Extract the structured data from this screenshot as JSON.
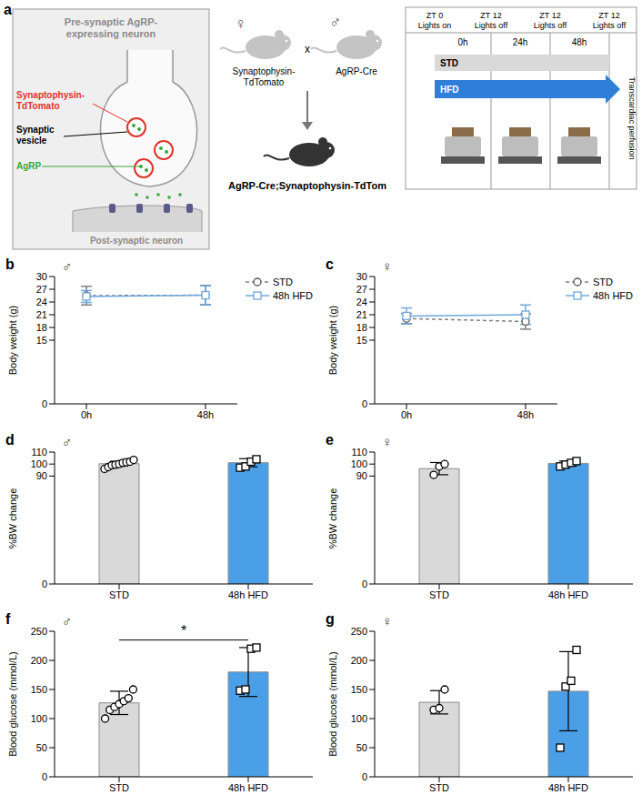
{
  "diagram": {
    "panel": "a",
    "synapse": {
      "presynaptic": "Pre-synaptic AgRP-expressing neuron",
      "reporter": "Synaptophysin-TdTomato",
      "vesicle": "Synaptic vesicle",
      "peptide": "AgRP",
      "postsynaptic": "Post-synaptic neuron"
    },
    "cross": {
      "female": {
        "symbol": "♀",
        "strain": "Synaptophysin-TdTomato"
      },
      "sign": "x",
      "male": {
        "symbol": "♂",
        "strain": "AgRP-Cre"
      },
      "offspring": "AgRP-Cre;Synaptophysin-TdTom"
    },
    "timeline": {
      "header": [
        {
          "zt": "ZT 0",
          "light": "Lights on"
        },
        {
          "zt": "ZT 12",
          "light": "Lights off"
        },
        {
          "zt": "ZT 12",
          "light": "Lights off"
        },
        {
          "zt": "ZT 12",
          "light": "Lights off"
        }
      ],
      "times": [
        "0h",
        "24h",
        "48h"
      ],
      "diets": [
        "STD",
        "HFD"
      ],
      "endpoint": "Transcardiac perfusion"
    }
  },
  "chart_data": [
    {
      "panel": "b",
      "type": "line",
      "subtitle": "♂",
      "categories": [
        "0h",
        "48h"
      ],
      "y_label": "Body weight (g)",
      "ylim": [
        0,
        30
      ],
      "yticks": [
        0,
        15,
        18,
        21,
        24,
        27,
        30
      ],
      "legend": "right",
      "series": [
        {
          "name": "STD",
          "color": "#808080",
          "line_style": "dashed",
          "marker": "circle",
          "values": [
            25.5,
            25.6
          ],
          "errors": [
            2.2,
            2.3
          ]
        },
        {
          "name": "48h HFD",
          "color": "#6fa8dc",
          "line_style": "solid",
          "marker": "square",
          "values": [
            25.3,
            25.6
          ],
          "errors": [
            1.4,
            2.2
          ]
        }
      ]
    },
    {
      "panel": "c",
      "type": "line",
      "subtitle": "♀",
      "categories": [
        "0h",
        "48h"
      ],
      "y_label": "Body weight (g)",
      "ylim": [
        0,
        30
      ],
      "yticks": [
        0,
        15,
        18,
        21,
        24,
        27,
        30
      ],
      "legend": "right",
      "series": [
        {
          "name": "STD",
          "color": "#808080",
          "line_style": "dashed",
          "marker": "circle",
          "values": [
            20.1,
            19.4
          ],
          "errors": [
            1.2,
            1.8
          ]
        },
        {
          "name": "48h HFD",
          "color": "#6fa8dc",
          "line_style": "solid",
          "marker": "square",
          "values": [
            20.7,
            21.0
          ],
          "errors": [
            1.9,
            2.3
          ]
        }
      ]
    },
    {
      "panel": "d",
      "type": "bar",
      "subtitle": "♂",
      "categories": [
        "STD",
        "48h HFD"
      ],
      "y_label": "%BW change",
      "ylim": [
        0,
        110
      ],
      "yticks": [
        0,
        90,
        100,
        110
      ],
      "colors": [
        "#d9d9d9",
        "#4b9fe6"
      ],
      "values": [
        100.3,
        101.1
      ],
      "errors": [
        2.0,
        3.4
      ],
      "points": [
        [
          96,
          97.5,
          99,
          99.5,
          100,
          101,
          101.5,
          102,
          103.5
        ],
        [
          97,
          98,
          102,
          104
        ]
      ]
    },
    {
      "panel": "e",
      "type": "bar",
      "subtitle": "♀",
      "categories": [
        "STD",
        "48h HFD"
      ],
      "y_label": "%BW change",
      "ylim": [
        0,
        110
      ],
      "yticks": [
        0,
        90,
        100,
        110
      ],
      "colors": [
        "#d9d9d9",
        "#4b9fe6"
      ],
      "values": [
        96.2,
        100.6
      ],
      "errors": [
        5.1,
        1.9
      ],
      "points": [
        [
          91,
          98,
          100
        ],
        [
          98,
          99.5,
          101,
          102.5
        ]
      ]
    },
    {
      "panel": "f",
      "type": "bar",
      "subtitle": "♂",
      "categories": [
        "STD",
        "48h HFD"
      ],
      "y_label": "Blood glucose (mmol/L)",
      "ylim": [
        0,
        250
      ],
      "yticks": [
        0,
        50,
        100,
        150,
        200,
        250
      ],
      "colors": [
        "#d9d9d9",
        "#4b9fe6"
      ],
      "values": [
        127,
        180
      ],
      "errors": [
        20,
        42
      ],
      "points": [
        [
          100,
          115,
          120,
          125,
          130,
          135,
          150
        ],
        [
          148,
          150,
          220,
          222
        ]
      ],
      "significance": {
        "text": "*",
        "between": [
          "STD",
          "48h HFD"
        ],
        "y": 235
      }
    },
    {
      "panel": "g",
      "type": "bar",
      "subtitle": "♀",
      "categories": [
        "STD",
        "48h HFD"
      ],
      "y_label": "Blood glucose (mmol/L)",
      "ylim": [
        0,
        250
      ],
      "yticks": [
        0,
        50,
        100,
        150,
        200,
        250
      ],
      "colors": [
        "#d9d9d9",
        "#4b9fe6"
      ],
      "values": [
        128,
        147
      ],
      "errors": [
        20,
        68
      ],
      "points": [
        [
          115,
          118,
          150
        ],
        [
          50,
          155,
          165,
          218
        ]
      ]
    }
  ]
}
